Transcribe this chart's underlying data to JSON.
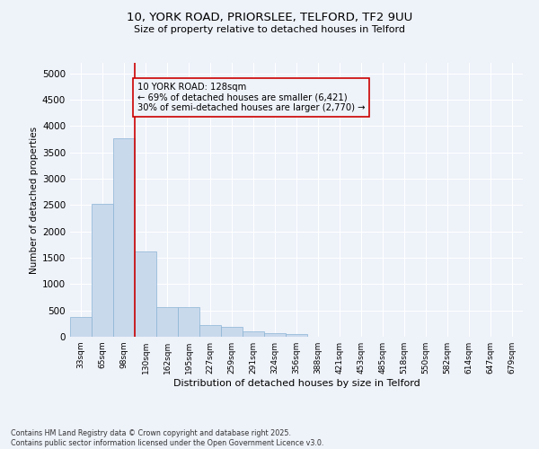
{
  "title_line1": "10, YORK ROAD, PRIORSLEE, TELFORD, TF2 9UU",
  "title_line2": "Size of property relative to detached houses in Telford",
  "xlabel": "Distribution of detached houses by size in Telford",
  "ylabel": "Number of detached properties",
  "categories": [
    "33sqm",
    "65sqm",
    "98sqm",
    "130sqm",
    "162sqm",
    "195sqm",
    "227sqm",
    "259sqm",
    "291sqm",
    "324sqm",
    "356sqm",
    "388sqm",
    "421sqm",
    "453sqm",
    "485sqm",
    "518sqm",
    "550sqm",
    "582sqm",
    "614sqm",
    "647sqm",
    "679sqm"
  ],
  "values": [
    370,
    2530,
    3770,
    1620,
    560,
    560,
    220,
    185,
    105,
    65,
    50,
    0,
    0,
    0,
    0,
    0,
    0,
    0,
    0,
    0,
    0
  ],
  "bar_color": "#c9d9ec",
  "bar_edge_color": "#8ab4d4",
  "vline_color": "#cc0000",
  "vline_x_index": 3,
  "annotation_text": "10 YORK ROAD: 128sqm\n← 69% of detached houses are smaller (6,421)\n30% of semi-detached houses are larger (2,770) →",
  "ylim": [
    0,
    5200
  ],
  "yticks": [
    0,
    500,
    1000,
    1500,
    2000,
    2500,
    3000,
    3500,
    4000,
    4500,
    5000
  ],
  "background_color": "#eef2f9",
  "grid_color": "#ffffff",
  "footer_line1": "Contains HM Land Registry data © Crown copyright and database right 2025.",
  "footer_line2": "Contains public sector information licensed under the Open Government Licence v3.0."
}
